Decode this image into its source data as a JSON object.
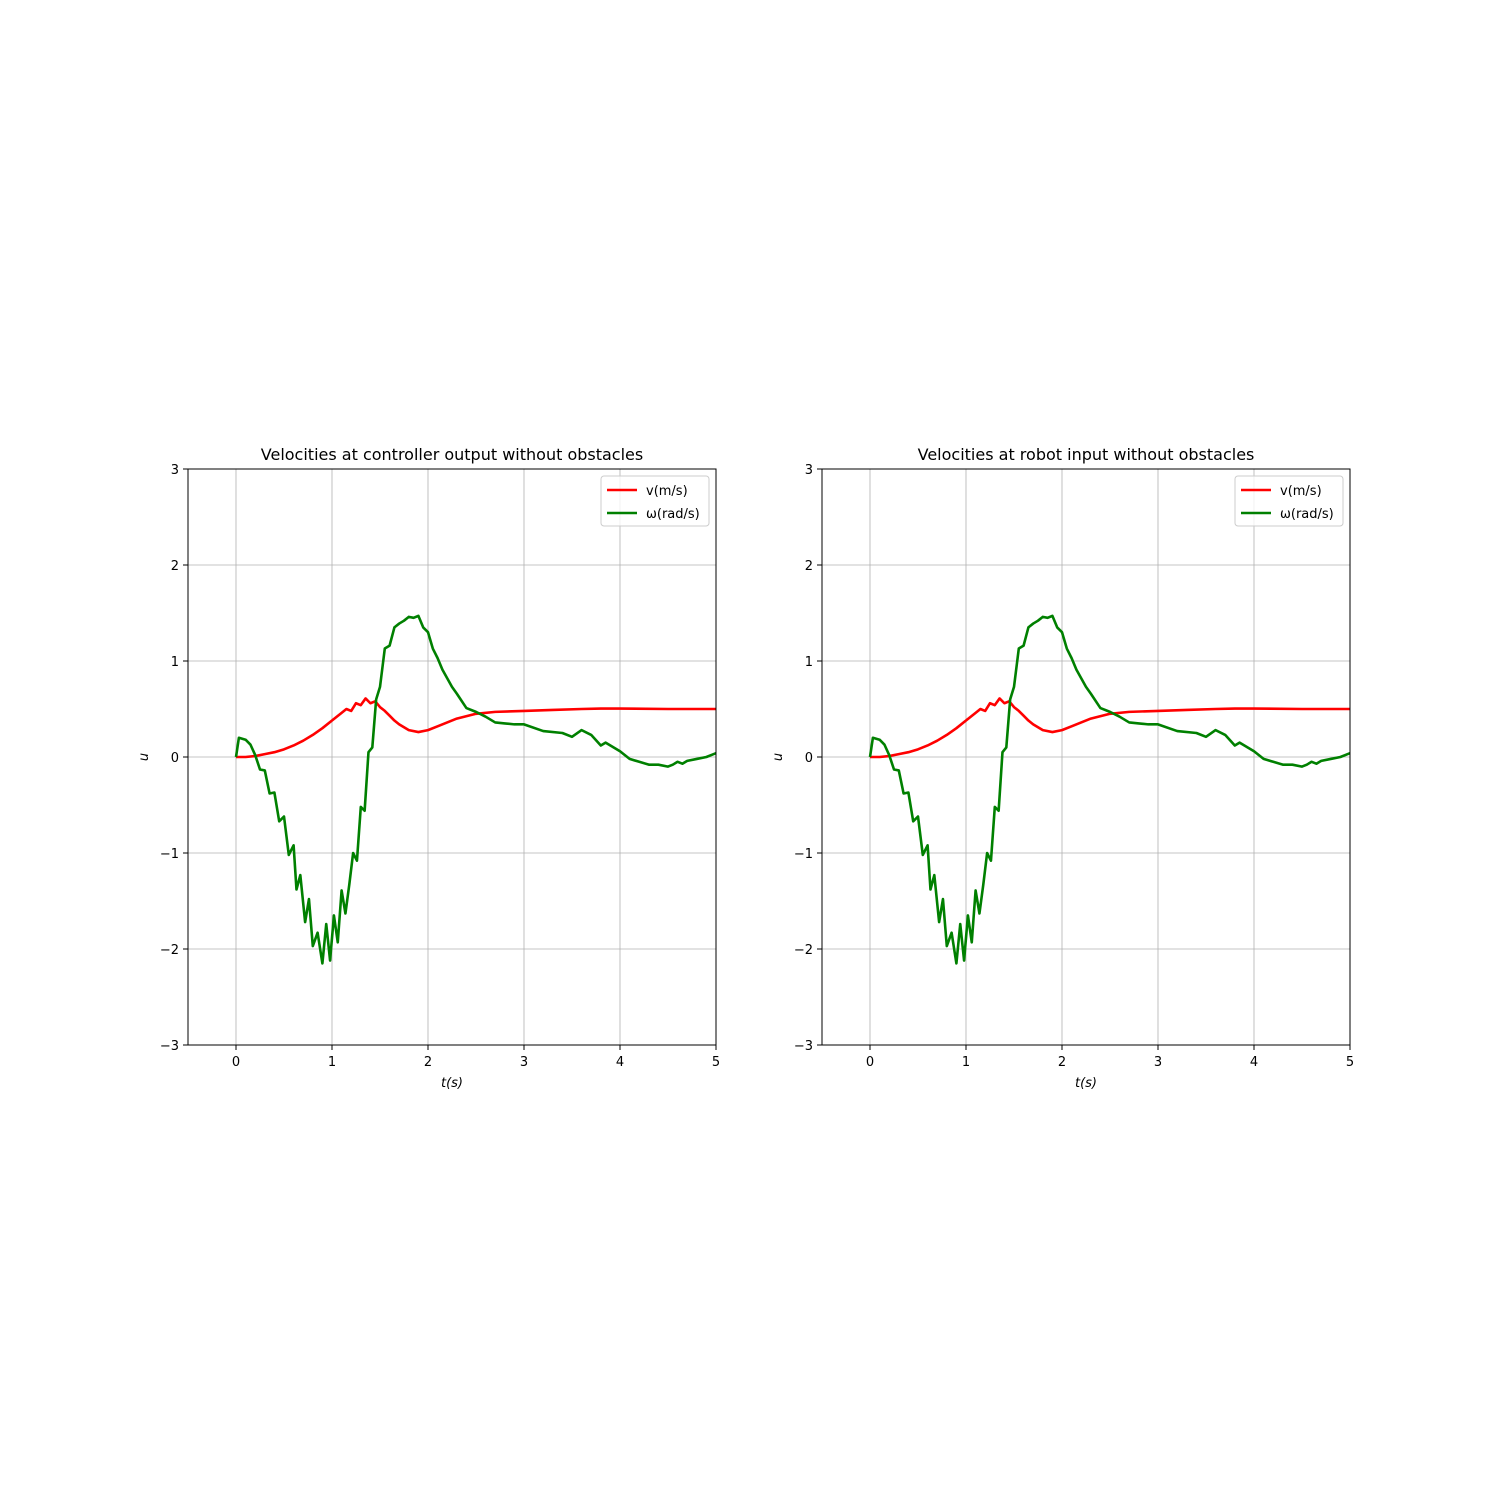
{
  "chart_data": [
    {
      "type": "line",
      "title": "Velocities at controller output without obstacles",
      "xlabel": "t(s)",
      "ylabel": "u",
      "xlim": [
        -0.5,
        5
      ],
      "ylim": [
        -3,
        3
      ],
      "xticks": [
        "0",
        "1",
        "2",
        "3",
        "4",
        "5"
      ],
      "yticks": [
        "−3",
        "−2",
        "−1",
        "0",
        "1",
        "2",
        "3"
      ],
      "grid": true,
      "legend_position": "top-right",
      "series": [
        {
          "name": "v(m/s)",
          "color": "#ff0000",
          "x": [
            0,
            0.1,
            0.2,
            0.3,
            0.4,
            0.5,
            0.6,
            0.7,
            0.8,
            0.9,
            1.0,
            1.1,
            1.15,
            1.2,
            1.25,
            1.3,
            1.35,
            1.4,
            1.45,
            1.5,
            1.55,
            1.6,
            1.65,
            1.7,
            1.8,
            1.9,
            2.0,
            2.1,
            2.2,
            2.3,
            2.5,
            2.7,
            3.0,
            3.3,
            3.6,
            3.8,
            4.0,
            4.5,
            5.0
          ],
          "y": [
            0.0,
            0.0,
            0.01,
            0.03,
            0.05,
            0.08,
            0.12,
            0.17,
            0.23,
            0.3,
            0.38,
            0.46,
            0.5,
            0.48,
            0.56,
            0.54,
            0.61,
            0.56,
            0.58,
            0.52,
            0.48,
            0.43,
            0.38,
            0.34,
            0.28,
            0.26,
            0.28,
            0.32,
            0.36,
            0.4,
            0.45,
            0.47,
            0.48,
            0.49,
            0.5,
            0.505,
            0.505,
            0.5,
            0.5
          ]
        },
        {
          "name": "ω(rad/s)",
          "color": "#008000",
          "x": [
            0,
            0.03,
            0.1,
            0.15,
            0.2,
            0.25,
            0.3,
            0.35,
            0.4,
            0.45,
            0.5,
            0.55,
            0.6,
            0.63,
            0.67,
            0.72,
            0.76,
            0.8,
            0.85,
            0.9,
            0.94,
            0.98,
            1.02,
            1.06,
            1.1,
            1.14,
            1.18,
            1.22,
            1.26,
            1.3,
            1.34,
            1.38,
            1.42,
            1.46,
            1.5,
            1.55,
            1.6,
            1.65,
            1.7,
            1.75,
            1.8,
            1.85,
            1.9,
            1.95,
            2.0,
            2.05,
            2.1,
            2.15,
            2.2,
            2.25,
            2.3,
            2.4,
            2.5,
            2.6,
            2.7,
            2.8,
            2.9,
            3.0,
            3.2,
            3.4,
            3.5,
            3.6,
            3.7,
            3.8,
            3.85,
            3.9,
            4.0,
            4.1,
            4.2,
            4.3,
            4.4,
            4.5,
            4.55,
            4.6,
            4.65,
            4.7,
            4.8,
            4.9,
            5.0
          ],
          "y": [
            0.0,
            0.2,
            0.18,
            0.13,
            0.02,
            -0.13,
            -0.14,
            -0.38,
            -0.37,
            -0.67,
            -0.62,
            -1.02,
            -0.92,
            -1.38,
            -1.23,
            -1.72,
            -1.48,
            -1.97,
            -1.83,
            -2.15,
            -1.74,
            -2.12,
            -1.65,
            -1.93,
            -1.39,
            -1.63,
            -1.33,
            -1.0,
            -1.08,
            -0.52,
            -0.56,
            0.05,
            0.1,
            0.6,
            0.73,
            1.13,
            1.16,
            1.35,
            1.39,
            1.42,
            1.46,
            1.45,
            1.47,
            1.35,
            1.3,
            1.13,
            1.03,
            0.91,
            0.82,
            0.73,
            0.66,
            0.51,
            0.47,
            0.42,
            0.36,
            0.35,
            0.34,
            0.34,
            0.27,
            0.25,
            0.21,
            0.28,
            0.23,
            0.12,
            0.15,
            0.12,
            0.06,
            -0.02,
            -0.05,
            -0.08,
            -0.08,
            -0.1,
            -0.08,
            -0.05,
            -0.07,
            -0.04,
            -0.02,
            0.0,
            0.04
          ]
        }
      ]
    },
    {
      "type": "line",
      "title": "Velocities at robot input without obstacles",
      "xlabel": "t(s)",
      "ylabel": "u",
      "xlim": [
        -0.5,
        5
      ],
      "ylim": [
        -3,
        3
      ],
      "xticks": [
        "0",
        "1",
        "2",
        "3",
        "4",
        "5"
      ],
      "yticks": [
        "−3",
        "−2",
        "−1",
        "0",
        "1",
        "2",
        "3"
      ],
      "grid": true,
      "legend_position": "top-right",
      "series": [
        {
          "name": "v(m/s)",
          "color": "#ff0000",
          "x": [
            0,
            0.1,
            0.2,
            0.3,
            0.4,
            0.5,
            0.6,
            0.7,
            0.8,
            0.9,
            1.0,
            1.1,
            1.15,
            1.2,
            1.25,
            1.3,
            1.35,
            1.4,
            1.45,
            1.5,
            1.55,
            1.6,
            1.65,
            1.7,
            1.8,
            1.9,
            2.0,
            2.1,
            2.2,
            2.3,
            2.5,
            2.7,
            3.0,
            3.3,
            3.6,
            3.8,
            4.0,
            4.5,
            5.0
          ],
          "y": [
            0.0,
            0.0,
            0.01,
            0.03,
            0.05,
            0.08,
            0.12,
            0.17,
            0.23,
            0.3,
            0.38,
            0.46,
            0.5,
            0.48,
            0.56,
            0.54,
            0.61,
            0.56,
            0.58,
            0.52,
            0.48,
            0.43,
            0.38,
            0.34,
            0.28,
            0.26,
            0.28,
            0.32,
            0.36,
            0.4,
            0.45,
            0.47,
            0.48,
            0.49,
            0.5,
            0.505,
            0.505,
            0.5,
            0.5
          ]
        },
        {
          "name": "ω(rad/s)",
          "color": "#008000",
          "x": [
            0,
            0.03,
            0.1,
            0.15,
            0.2,
            0.25,
            0.3,
            0.35,
            0.4,
            0.45,
            0.5,
            0.55,
            0.6,
            0.63,
            0.67,
            0.72,
            0.76,
            0.8,
            0.85,
            0.9,
            0.94,
            0.98,
            1.02,
            1.06,
            1.1,
            1.14,
            1.18,
            1.22,
            1.26,
            1.3,
            1.34,
            1.38,
            1.42,
            1.46,
            1.5,
            1.55,
            1.6,
            1.65,
            1.7,
            1.75,
            1.8,
            1.85,
            1.9,
            1.95,
            2.0,
            2.05,
            2.1,
            2.15,
            2.2,
            2.25,
            2.3,
            2.4,
            2.5,
            2.6,
            2.7,
            2.8,
            2.9,
            3.0,
            3.2,
            3.4,
            3.5,
            3.6,
            3.7,
            3.8,
            3.85,
            3.9,
            4.0,
            4.1,
            4.2,
            4.3,
            4.4,
            4.5,
            4.55,
            4.6,
            4.65,
            4.7,
            4.8,
            4.9,
            5.0
          ],
          "y": [
            0.0,
            0.2,
            0.18,
            0.13,
            0.02,
            -0.13,
            -0.14,
            -0.38,
            -0.37,
            -0.67,
            -0.62,
            -1.02,
            -0.92,
            -1.38,
            -1.23,
            -1.72,
            -1.48,
            -1.97,
            -1.83,
            -2.15,
            -1.74,
            -2.12,
            -1.65,
            -1.93,
            -1.39,
            -1.63,
            -1.33,
            -1.0,
            -1.08,
            -0.52,
            -0.56,
            0.05,
            0.1,
            0.6,
            0.73,
            1.13,
            1.16,
            1.35,
            1.39,
            1.42,
            1.46,
            1.45,
            1.47,
            1.35,
            1.3,
            1.13,
            1.03,
            0.91,
            0.82,
            0.73,
            0.66,
            0.51,
            0.47,
            0.42,
            0.36,
            0.35,
            0.34,
            0.34,
            0.27,
            0.25,
            0.21,
            0.28,
            0.23,
            0.12,
            0.15,
            0.12,
            0.06,
            -0.02,
            -0.05,
            -0.08,
            -0.08,
            -0.1,
            -0.08,
            -0.05,
            -0.07,
            -0.04,
            -0.02,
            0.0,
            0.04
          ]
        }
      ]
    }
  ]
}
